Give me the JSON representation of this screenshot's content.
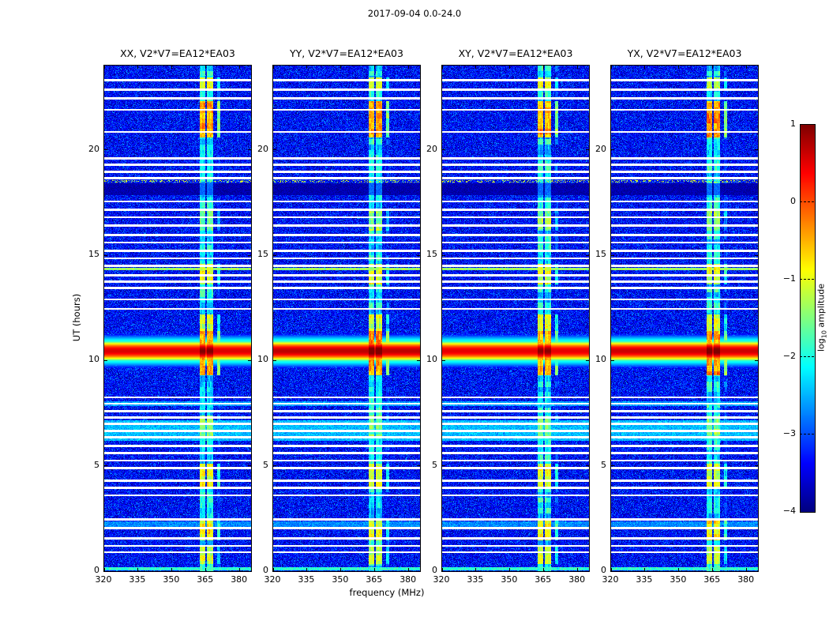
{
  "chart_data": {
    "type": "heatmap",
    "title": "2017-09-04 0.0-24.0",
    "xlabel": "frequency (MHz)",
    "ylabel": "UT (hours)",
    "xlim": [
      320,
      385
    ],
    "ylim": [
      0,
      24
    ],
    "xticks": [
      320,
      335,
      350,
      365,
      380
    ],
    "yticks": [
      0,
      5,
      10,
      15,
      20
    ],
    "grid": false,
    "colormap": "jet",
    "panels": [
      {
        "label": "XX, V2*V7=EA12*EA03",
        "seed": 11,
        "burst_boost": 0
      },
      {
        "label": "YY, V2*V7=EA12*EA03",
        "seed": 23,
        "burst_boost": 0.15
      },
      {
        "label": "XY, V2*V7=EA12*EA03",
        "seed": 37,
        "burst_boost": -0.05
      },
      {
        "label": "YX, V2*V7=EA12*EA03",
        "seed": 53,
        "burst_boost": 0.08
      }
    ],
    "colorbar": {
      "label_pre": "log",
      "label_sub": "10",
      "label_post": " amplitude",
      "vmin": -4,
      "vmax": 1,
      "tick_values": [
        1,
        0,
        -1,
        -2,
        -3,
        -4
      ],
      "tick_labels": [
        "1",
        "0",
        "−1",
        "−2",
        "−3",
        "−4"
      ],
      "dash_values": [
        0,
        -1,
        -2,
        -3
      ]
    },
    "features": {
      "noise_floor": -3.35,
      "noise_sigma": 0.33,
      "rfi_base_level": -2.15,
      "rfi_bands": [
        {
          "f0": 362.3,
          "f1": 364.6,
          "atten": 0
        },
        {
          "f0": 365.6,
          "f1": 368.4,
          "atten": 0
        },
        {
          "f0": 369.8,
          "f1": 371.2,
          "atten": 1.1
        }
      ],
      "rfi_events": [
        {
          "t0": 0.35,
          "t1": 1.15,
          "level": -1.2
        },
        {
          "t0": 1.45,
          "t1": 2.5,
          "level": -0.85
        },
        {
          "t0": 4.0,
          "t1": 5.1,
          "level": -1.0
        },
        {
          "t0": 6.3,
          "t1": 7.4,
          "level": -1.5
        },
        {
          "t0": 9.3,
          "t1": 11.4,
          "level": -0.4
        },
        {
          "t0": 11.4,
          "t1": 12.2,
          "level": -1.1
        },
        {
          "t0": 13.6,
          "t1": 14.6,
          "level": -1.05
        },
        {
          "t0": 16.15,
          "t1": 17.2,
          "level": -1.4
        },
        {
          "t0": 20.6,
          "t1": 22.3,
          "level": -0.45
        },
        {
          "t0": 22.9,
          "t1": 23.45,
          "level": -1.1
        }
      ],
      "burst": {
        "t_center": 10.45,
        "core_level": 0.55,
        "core_curv": 12,
        "halo_level": -1.2,
        "halo_curv": 3.5
      },
      "cyan_bands": [
        {
          "t0": 0.04,
          "t1": 0.18,
          "level": -1.9
        },
        {
          "t0": 2.0,
          "t1": 2.35,
          "level": -2.7
        },
        {
          "t0": 6.2,
          "t1": 7.15,
          "level": -2.45
        },
        {
          "t0": 7.85,
          "t1": 8.05,
          "level": -2.6
        }
      ],
      "hot_rows": [
        {
          "t": 14.35,
          "level": -1.35
        },
        {
          "t": 18.5,
          "level": -1.1,
          "density": 0.25
        }
      ],
      "dark_band": {
        "t0": 17.85,
        "t1": 18.4,
        "level": -3.95
      },
      "gap_hours": [
        0.9,
        1.2,
        1.55,
        2.05,
        2.45,
        3.6,
        3.95,
        4.3,
        4.9,
        5.25,
        5.6,
        5.95,
        6.35,
        6.65,
        7.0,
        7.3,
        7.6,
        7.95,
        8.25,
        12.45,
        12.9,
        13.45,
        13.75,
        14.05,
        14.5,
        14.85,
        15.2,
        15.6,
        15.95,
        16.4,
        16.8,
        17.15,
        17.55,
        18.65,
        18.95,
        19.3,
        19.6,
        20.85,
        21.9,
        22.45,
        22.85,
        23.3
      ],
      "gap_half_width": 0.05
    }
  }
}
